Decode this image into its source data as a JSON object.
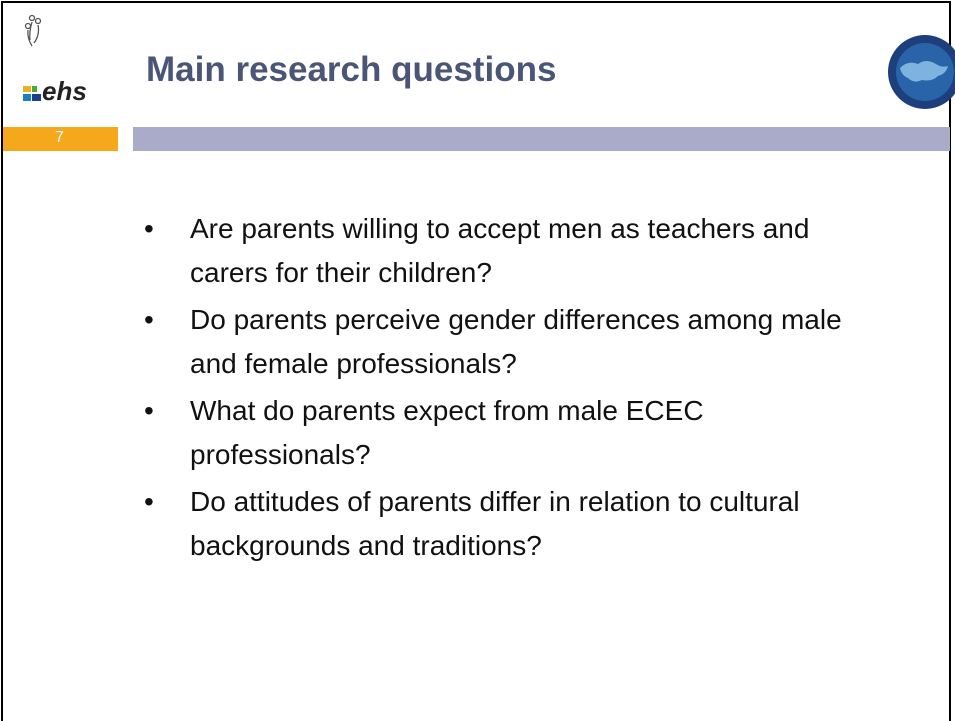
{
  "header": {
    "title": "Main research questions",
    "logo_text": "ehs",
    "slide_number": "7"
  },
  "bullets": [
    "Are parents willing to accept men as teachers and carers for their children?",
    "Do parents perceive gender differences among male and female professionals?",
    "What do parents expect from male ECEC professionals?",
    "Do attitudes of parents differ in relation to cultural backgrounds and traditions?"
  ]
}
